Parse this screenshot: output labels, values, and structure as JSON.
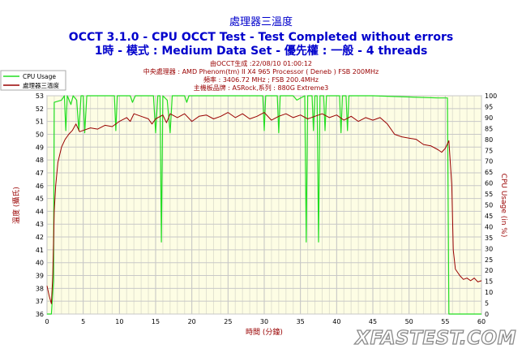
{
  "chart_data": {
    "type": "line",
    "title": "處理器三溫度",
    "subtitle_lines": [
      "OCCT 3.1.0 - CPU OCCT Test - Test Completed without errors",
      "1時 - 模式 : Medium Data Set - 優先權 : 一般 - 4 threads"
    ],
    "info_lines": [
      "由OCCT生成 :22/08/10 01:00:12",
      "中央處理器 : AMD Phenom(tm) II X4 965 Processor ( Deneb ) FSB 200MHz",
      "頻率 : 3406.72 MHz ; FSB 200.4MHz",
      "主機板品牌 : ASRock,系列 : 880G Extreme3"
    ],
    "xlabel": "時間 (分鐘)",
    "ylabel": "溫度 (攝氏)",
    "y2label": "CPU Usage (in %)",
    "xlim": [
      0,
      60
    ],
    "ylim": [
      36,
      53
    ],
    "y2lim": [
      0,
      100
    ],
    "xticks": [
      0,
      5,
      10,
      15,
      20,
      25,
      30,
      35,
      40,
      45,
      50,
      55,
      60
    ],
    "yticks": [
      36,
      37,
      38,
      39,
      40,
      41,
      42,
      43,
      44,
      45,
      46,
      47,
      48,
      49,
      50,
      51,
      52,
      53
    ],
    "y2ticks": [
      0,
      5,
      10,
      15,
      20,
      25,
      30,
      35,
      40,
      45,
      50,
      55,
      60,
      65,
      70,
      75,
      80,
      85,
      90,
      95,
      100
    ],
    "grid": true,
    "legend_position": "top-left",
    "series": [
      {
        "name": "CPU Usage",
        "axis": "right",
        "color": "#22dd22",
        "points": [
          [
            0,
            0
          ],
          [
            0.6,
            0
          ],
          [
            0.9,
            15
          ],
          [
            1.0,
            97
          ],
          [
            2.0,
            98
          ],
          [
            2.4,
            100
          ],
          [
            2.6,
            84
          ],
          [
            2.8,
            100
          ],
          [
            3.3,
            96
          ],
          [
            3.6,
            100
          ],
          [
            4.1,
            98
          ],
          [
            4.4,
            84
          ],
          [
            4.7,
            100
          ],
          [
            5.0,
            100
          ],
          [
            5.2,
            83
          ],
          [
            5.5,
            100
          ],
          [
            8.0,
            100
          ],
          [
            9.3,
            100
          ],
          [
            9.5,
            84
          ],
          [
            9.7,
            100
          ],
          [
            11.5,
            100
          ],
          [
            11.8,
            97
          ],
          [
            12.2,
            100
          ],
          [
            14.7,
            100
          ],
          [
            15.0,
            83
          ],
          [
            15.3,
            100
          ],
          [
            15.6,
            100
          ],
          [
            15.8,
            33
          ],
          [
            16.0,
            100
          ],
          [
            16.6,
            98
          ],
          [
            17.0,
            83
          ],
          [
            17.3,
            100
          ],
          [
            19.0,
            100
          ],
          [
            19.3,
            97
          ],
          [
            19.6,
            100
          ],
          [
            26.0,
            100
          ],
          [
            29.8,
            100
          ],
          [
            30.0,
            84
          ],
          [
            30.2,
            100
          ],
          [
            31.8,
            100
          ],
          [
            32.0,
            83
          ],
          [
            32.2,
            100
          ],
          [
            34.0,
            100
          ],
          [
            34.5,
            98
          ],
          [
            35.6,
            100
          ],
          [
            35.8,
            33
          ],
          [
            36.0,
            100
          ],
          [
            36.6,
            100
          ],
          [
            36.8,
            84
          ],
          [
            37.0,
            100
          ],
          [
            37.3,
            100
          ],
          [
            37.5,
            33
          ],
          [
            37.7,
            100
          ],
          [
            38.2,
            100
          ],
          [
            38.4,
            84
          ],
          [
            38.6,
            100
          ],
          [
            40.4,
            100
          ],
          [
            40.6,
            83
          ],
          [
            40.8,
            100
          ],
          [
            41.3,
            100
          ],
          [
            41.5,
            84
          ],
          [
            41.7,
            100
          ],
          [
            45.0,
            100
          ],
          [
            54.0,
            99
          ],
          [
            55.3,
            99
          ],
          [
            55.5,
            0
          ],
          [
            60,
            0
          ]
        ]
      },
      {
        "name": "處理器三溫度",
        "axis": "left",
        "color": "#990000",
        "points": [
          [
            0,
            38.2
          ],
          [
            0.3,
            37.4
          ],
          [
            0.6,
            36.8
          ],
          [
            0.8,
            39.0
          ],
          [
            1.0,
            44.0
          ],
          [
            1.2,
            46.0
          ],
          [
            1.5,
            47.8
          ],
          [
            2.0,
            49.0
          ],
          [
            2.5,
            49.6
          ],
          [
            3.0,
            50.0
          ],
          [
            3.5,
            50.3
          ],
          [
            4.0,
            50.8
          ],
          [
            4.5,
            50.2
          ],
          [
            5.0,
            50.3
          ],
          [
            6.0,
            50.5
          ],
          [
            7.0,
            50.4
          ],
          [
            8.0,
            50.7
          ],
          [
            9.0,
            50.6
          ],
          [
            10.0,
            51.0
          ],
          [
            11.0,
            51.3
          ],
          [
            11.5,
            51.0
          ],
          [
            12.0,
            51.6
          ],
          [
            13.0,
            51.4
          ],
          [
            14.0,
            51.2
          ],
          [
            14.5,
            50.8
          ],
          [
            15.0,
            51.2
          ],
          [
            16.0,
            51.5
          ],
          [
            16.5,
            50.9
          ],
          [
            17.0,
            51.6
          ],
          [
            18.0,
            51.3
          ],
          [
            19.0,
            51.6
          ],
          [
            20.0,
            51.0
          ],
          [
            21.0,
            51.4
          ],
          [
            22.0,
            51.5
          ],
          [
            23.0,
            51.2
          ],
          [
            24.0,
            51.4
          ],
          [
            25.0,
            51.7
          ],
          [
            26.0,
            51.3
          ],
          [
            27.0,
            51.6
          ],
          [
            28.0,
            51.2
          ],
          [
            29.0,
            51.4
          ],
          [
            30.0,
            51.7
          ],
          [
            31.0,
            51.1
          ],
          [
            32.0,
            51.4
          ],
          [
            33.0,
            51.6
          ],
          [
            34.0,
            51.3
          ],
          [
            35.0,
            51.5
          ],
          [
            36.0,
            51.2
          ],
          [
            37.0,
            51.4
          ],
          [
            38.0,
            51.6
          ],
          [
            39.0,
            51.3
          ],
          [
            40.0,
            51.5
          ],
          [
            41.0,
            51.1
          ],
          [
            42.0,
            51.4
          ],
          [
            43.0,
            51.0
          ],
          [
            44.0,
            51.3
          ],
          [
            45.0,
            51.1
          ],
          [
            46.0,
            51.3
          ],
          [
            47.0,
            50.8
          ],
          [
            48.0,
            50.0
          ],
          [
            49.0,
            49.8
          ],
          [
            50.0,
            49.7
          ],
          [
            51.0,
            49.6
          ],
          [
            52.0,
            49.2
          ],
          [
            53.0,
            49.1
          ],
          [
            54.0,
            48.8
          ],
          [
            54.5,
            48.6
          ],
          [
            55.0,
            48.9
          ],
          [
            55.5,
            49.5
          ],
          [
            55.9,
            46.0
          ],
          [
            56.1,
            41.0
          ],
          [
            56.4,
            39.5
          ],
          [
            57.0,
            39.0
          ],
          [
            57.5,
            38.7
          ],
          [
            58.0,
            38.8
          ],
          [
            58.5,
            38.6
          ],
          [
            59.0,
            38.8
          ],
          [
            59.5,
            38.5
          ],
          [
            60.0,
            38.6
          ]
        ]
      }
    ]
  },
  "watermark": "XFASTEST.COM"
}
